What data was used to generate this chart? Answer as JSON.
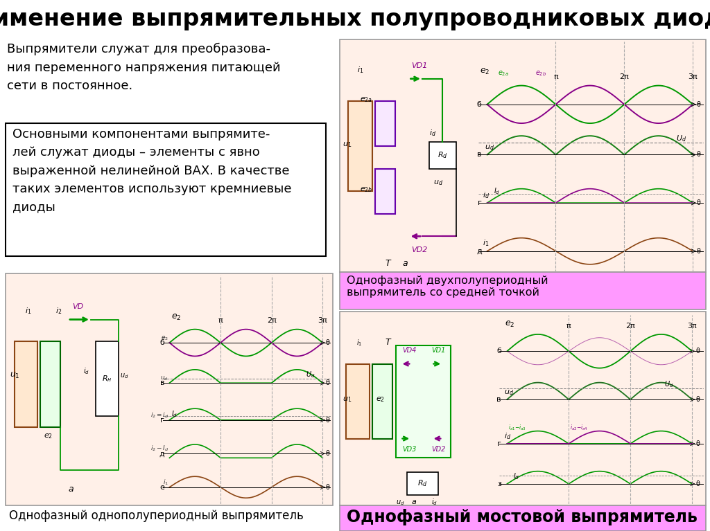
{
  "title": "Применение выпрямительных полупроводниковых диодов",
  "title_bg": "#FFFF00",
  "title_color": "#000000",
  "title_fontsize": 24,
  "slide_bg": "#FFFFFF",
  "text1": "Выпрямители служат для преобразова-\nния переменного напряжения питающей\nсети в постоянное.",
  "text2": "Основными компонентами выпрямите-\nлей служат диоды – элементы с явно\nвыраженной нелинейной ВАХ. В качестве\nтаких элементов используют кремниевые\nдиоды",
  "label1": "Однофазный однополупериодный выпрямитель",
  "label2": "Однофазный двухполупериодный\nвыпрямитель со средней точкой",
  "label3": "Однофазный мостовой выпрямитель",
  "panel_bg": "#FFF0E8",
  "panel_border": "#999999",
  "label2_bg": "#FF99FF",
  "label3_bg": "#FF99FF",
  "green": "#009900",
  "purple": "#880088",
  "brown": "#8B4513",
  "gray_line": "#888888"
}
